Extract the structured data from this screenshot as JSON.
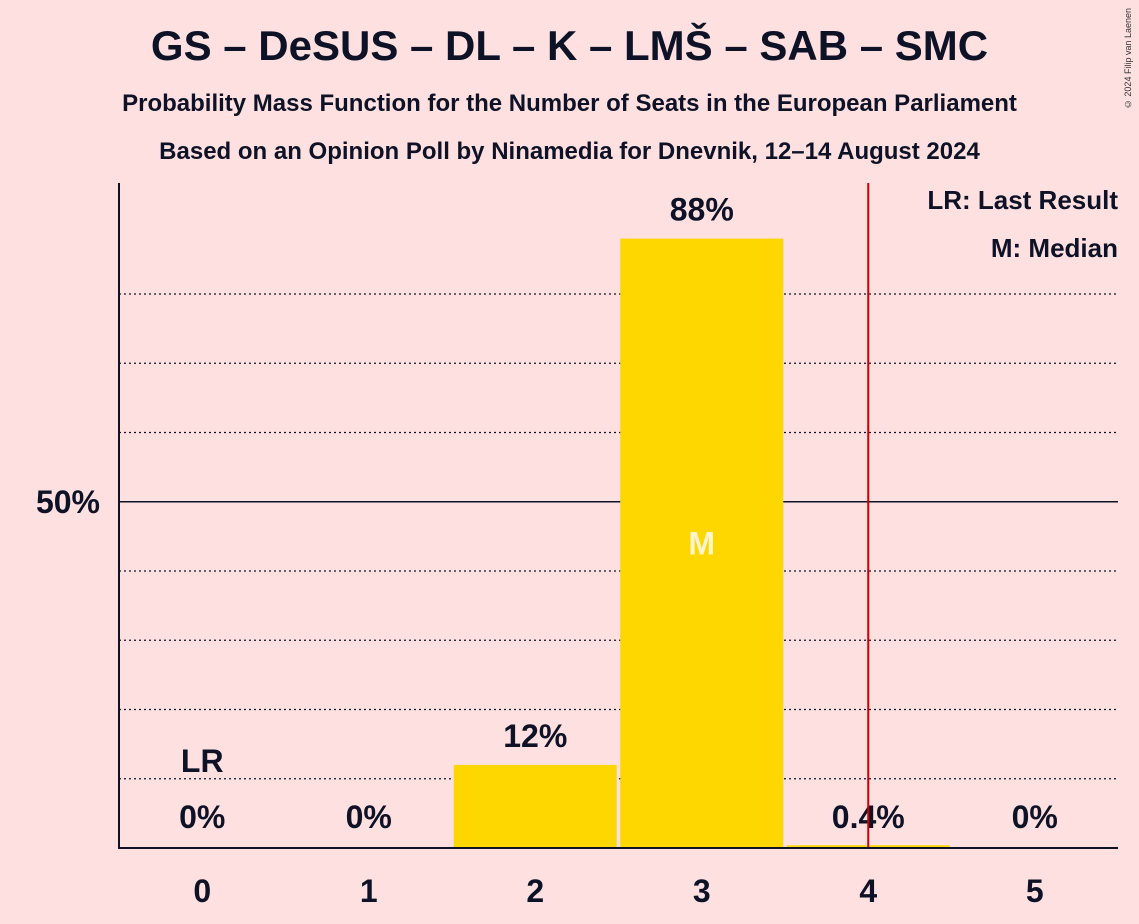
{
  "header": {
    "title": "GS – DeSUS – DL – K – LMŠ – SAB – SMC",
    "subtitle": "Probability Mass Function for the Number of Seats in the European Parliament",
    "subtitle2": "Based on an Opinion Poll by Ninamedia for Dnevnik, 12–14 August 2024",
    "copyright": "© 2024 Filip van Laenen"
  },
  "chart_data": {
    "type": "bar",
    "categories": [
      "0",
      "1",
      "2",
      "3",
      "4",
      "5"
    ],
    "values": [
      0,
      0,
      12,
      88,
      0.4,
      0
    ],
    "value_labels": [
      "0%",
      "0%",
      "12%",
      "88%",
      "0.4%",
      "0%"
    ],
    "ylim": [
      0,
      100
    ],
    "y_tick_label": "50%",
    "y_tick_value": 50,
    "gridlines_dotted": [
      10,
      20,
      30,
      40,
      60,
      70,
      80
    ],
    "last_result_seat": 0,
    "median_seat": 3,
    "last_result_line_after": 4.5,
    "lr_mark": "LR",
    "median_mark": "M",
    "legend": {
      "position": "top-right",
      "last_result": "LR: Last Result",
      "median": "M: Median"
    },
    "colors": {
      "bar": "#FFD700",
      "last_result_line": "#CC0000",
      "median_text": "#FFF4CC",
      "background": "#FFE0E0",
      "text": "#0d1226"
    }
  }
}
